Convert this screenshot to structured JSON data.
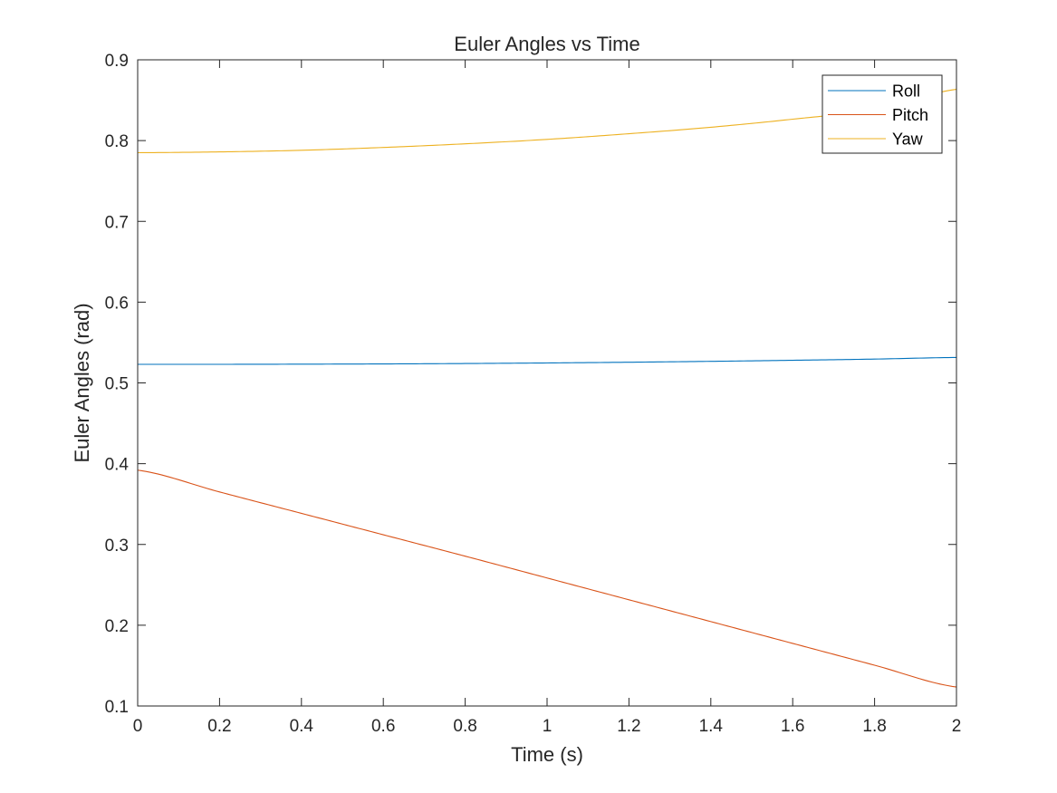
{
  "chart_data": {
    "type": "line",
    "title": "Euler Angles vs Time",
    "xlabel": "Time (s)",
    "ylabel": "Euler Angles (rad)",
    "xlim": [
      0,
      2
    ],
    "ylim": [
      0.1,
      0.9
    ],
    "xticks": [
      0,
      0.2,
      0.4,
      0.6,
      0.8,
      1,
      1.2,
      1.4,
      1.6,
      1.8,
      2
    ],
    "xtick_labels": [
      "0",
      "0.2",
      "0.4",
      "0.6",
      "0.8",
      "1",
      "1.2",
      "1.4",
      "1.6",
      "1.8",
      "2"
    ],
    "yticks": [
      0.1,
      0.2,
      0.3,
      0.4,
      0.5,
      0.6,
      0.7,
      0.8,
      0.9
    ],
    "ytick_labels": [
      "0.1",
      "0.2",
      "0.3",
      "0.4",
      "0.5",
      "0.6",
      "0.7",
      "0.8",
      "0.9"
    ],
    "grid": false,
    "legend_position": "top-right",
    "x": [
      0,
      0.2,
      0.4,
      0.6,
      0.8,
      1.0,
      1.2,
      1.4,
      1.6,
      1.8,
      2.0
    ],
    "series": [
      {
        "name": "Roll",
        "color": "#0072BD",
        "values": [
          0.523,
          0.523,
          0.5232,
          0.5235,
          0.524,
          0.5247,
          0.5256,
          0.5267,
          0.528,
          0.5295,
          0.5315
        ]
      },
      {
        "name": "Pitch",
        "color": "#D95319",
        "values": [
          0.392,
          0.365,
          0.3385,
          0.312,
          0.2855,
          0.2585,
          0.2315,
          0.2045,
          0.1775,
          0.1505,
          0.1235
        ]
      },
      {
        "name": "Yaw",
        "color": "#EDB120",
        "values": [
          0.785,
          0.786,
          0.788,
          0.7915,
          0.796,
          0.8015,
          0.8085,
          0.8165,
          0.8265,
          0.8385,
          0.8635
        ]
      }
    ]
  }
}
